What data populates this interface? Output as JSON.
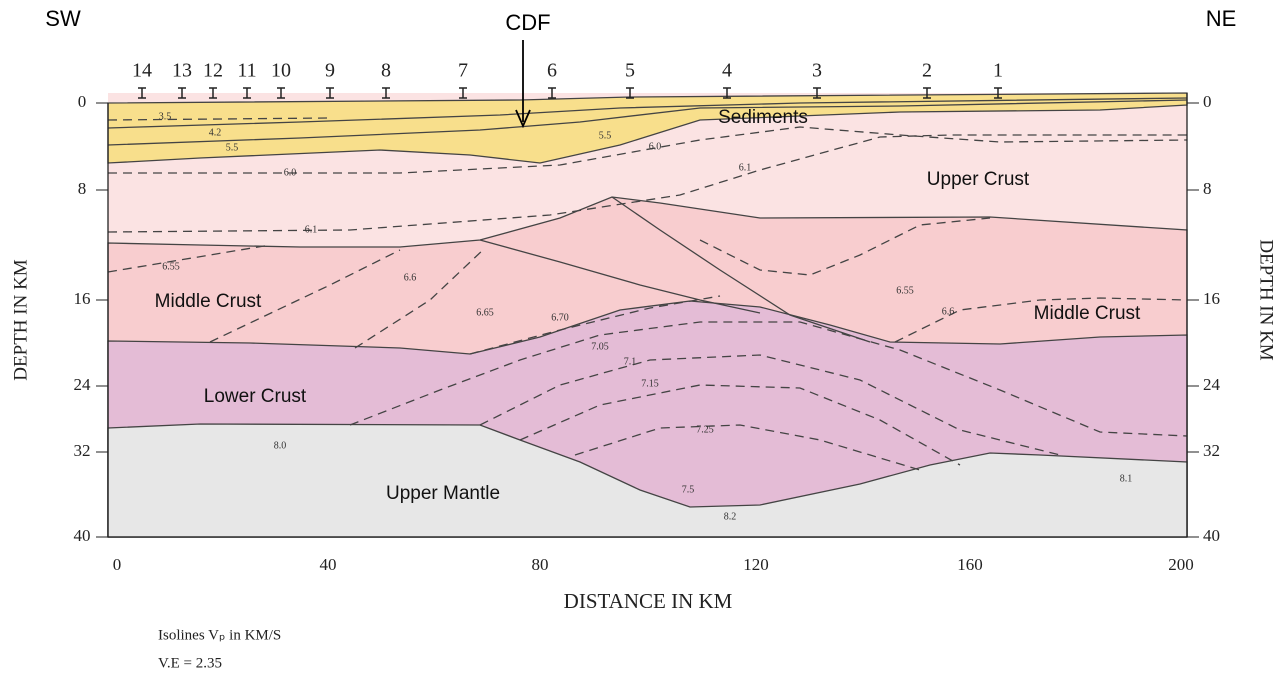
{
  "header": {
    "left": "SW",
    "right": "NE",
    "fault": "CDF"
  },
  "stations": [
    "14",
    "13",
    "12",
    "11",
    "10",
    "9",
    "8",
    "7",
    "6",
    "5",
    "4",
    "3",
    "2",
    "1"
  ],
  "x_axis": {
    "title": "DISTANCE IN KM",
    "ticks": [
      "0",
      "40",
      "80",
      "120",
      "160",
      "200"
    ]
  },
  "y_axis": {
    "title": "DEPTH IN KM",
    "ticks": [
      "0",
      "8",
      "16",
      "24",
      "32",
      "40"
    ]
  },
  "layers": [
    "Sediments",
    "Upper Crust",
    "Middle Crust",
    "Middle Crust",
    "Lower Crust",
    "Upper Mantle"
  ],
  "isolines": [
    "3.5",
    "4.2",
    "5.5",
    "5.5",
    "6.0",
    "6.0",
    "6.1",
    "6.1",
    "6.55",
    "6.6",
    "6.65",
    "6.70",
    "7.05",
    "7.1",
    "7.15",
    "7.25",
    "6.55",
    "6.6",
    "8.0",
    "7.5",
    "8.2",
    "8.1"
  ],
  "notes": [
    "Isolines Vₚ in KM/S",
    "V.E = 2.35"
  ]
}
